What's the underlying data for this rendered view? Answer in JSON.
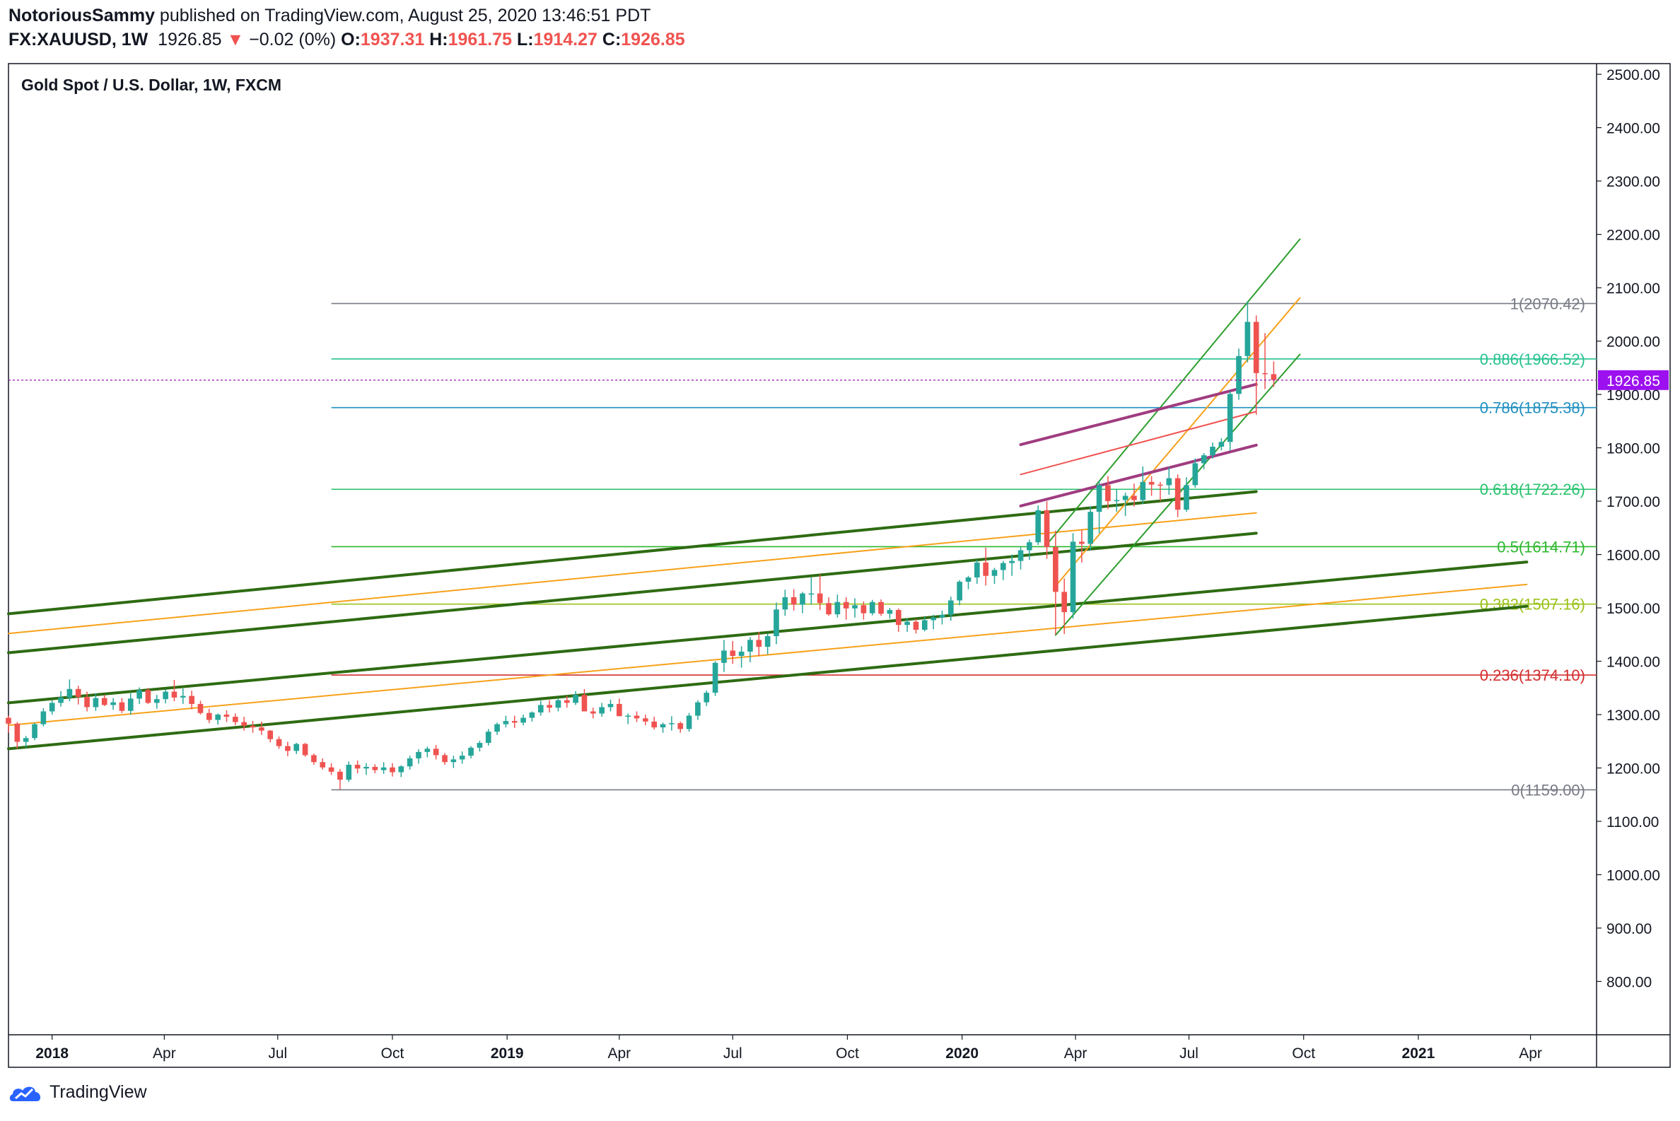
{
  "header": {
    "author": "NotoriousSammy",
    "published_text": " published on TradingView.com, August 25, 2020 13:46:51 PDT",
    "symbol": "FX:XAUUSD, 1W",
    "last": "1926.85",
    "change": "−0.02 (0%)",
    "o_label": "O:",
    "o_value": "1937.31",
    "h_label": "H:",
    "h_value": "1961.75",
    "l_label": "L:",
    "l_value": "1914.27",
    "c_label": "C:",
    "c_value": "1926.85"
  },
  "footer": {
    "brand": "TradingView"
  },
  "colors": {
    "up": "#26a69a",
    "down": "#ef5350",
    "dark_green": "#2e6b12",
    "orange": "#f7a11a",
    "magenta": "#a03c80",
    "green": "#2d9e2d",
    "purple": "#9c27b0",
    "price_tag": "#9c10f0",
    "fib_1": "#787b86",
    "fib_0886": "#26c290",
    "fib_0786": "#1f8fbf",
    "fib_0618": "#26c26b",
    "fib_05": "#2db82d",
    "fib_0382": "#9bc21b",
    "fib_0236": "#d32f2f",
    "fib_0": "#787b86"
  },
  "chart_data": {
    "type": "candlestick",
    "title": "Gold Spot / U.S. Dollar, 1W, FXCM",
    "y_axis": {
      "range": [
        700,
        2520
      ],
      "ticks": [
        "2500.00",
        "2400.00",
        "2300.00",
        "2200.00",
        "2100.00",
        "2000.00",
        "1900.00",
        "1800.00",
        "1700.00",
        "1600.00",
        "1500.00",
        "1400.00",
        "1300.00",
        "1200.00",
        "1100.00",
        "1000.00",
        "900.00",
        "800.00"
      ]
    },
    "x_axis": {
      "range": [
        "2017-11-27",
        "2021-05-24"
      ],
      "ticks": [
        {
          "label": "2018",
          "date": "2018-01-01",
          "bold": true
        },
        {
          "label": "Apr",
          "date": "2018-04-01"
        },
        {
          "label": "Jul",
          "date": "2018-07-01"
        },
        {
          "label": "Oct",
          "date": "2018-10-01"
        },
        {
          "label": "2019",
          "date": "2019-01-01",
          "bold": true
        },
        {
          "label": "Apr",
          "date": "2019-04-01"
        },
        {
          "label": "Jul",
          "date": "2019-07-01"
        },
        {
          "label": "Oct",
          "date": "2019-10-01"
        },
        {
          "label": "2020",
          "date": "2020-01-01",
          "bold": true
        },
        {
          "label": "Apr",
          "date": "2020-04-01"
        },
        {
          "label": "Jul",
          "date": "2020-07-01"
        },
        {
          "label": "Oct",
          "date": "2020-10-01"
        },
        {
          "label": "2021",
          "date": "2021-01-01",
          "bold": true
        },
        {
          "label": "Apr",
          "date": "2021-04-01"
        }
      ]
    },
    "last_price": {
      "value": 1926.85,
      "label": "1926.85"
    },
    "candles_start": "2017-11-27",
    "candles_ohlc": [
      [
        1294,
        1298,
        1266,
        1283
      ],
      [
        1283,
        1286,
        1236,
        1249
      ],
      [
        1249,
        1260,
        1238,
        1256
      ],
      [
        1256,
        1285,
        1252,
        1282
      ],
      [
        1282,
        1312,
        1278,
        1306
      ],
      [
        1306,
        1327,
        1300,
        1322
      ],
      [
        1322,
        1344,
        1315,
        1332
      ],
      [
        1332,
        1366,
        1325,
        1348
      ],
      [
        1348,
        1354,
        1319,
        1333
      ],
      [
        1333,
        1343,
        1306,
        1314
      ],
      [
        1314,
        1340,
        1307,
        1331
      ],
      [
        1331,
        1337,
        1316,
        1318
      ],
      [
        1318,
        1331,
        1309,
        1323
      ],
      [
        1323,
        1331,
        1303,
        1307
      ],
      [
        1307,
        1340,
        1300,
        1330
      ],
      [
        1330,
        1351,
        1320,
        1346
      ],
      [
        1346,
        1350,
        1320,
        1322
      ],
      [
        1322,
        1337,
        1311,
        1329
      ],
      [
        1329,
        1347,
        1321,
        1343
      ],
      [
        1343,
        1365,
        1325,
        1332
      ],
      [
        1332,
        1349,
        1320,
        1335
      ],
      [
        1335,
        1345,
        1310,
        1320
      ],
      [
        1320,
        1326,
        1300,
        1303
      ],
      [
        1303,
        1311,
        1284,
        1290
      ],
      [
        1290,
        1302,
        1281,
        1300
      ],
      [
        1300,
        1308,
        1286,
        1296
      ],
      [
        1296,
        1302,
        1280,
        1286
      ],
      [
        1286,
        1296,
        1270,
        1279
      ],
      [
        1279,
        1288,
        1266,
        1276
      ],
      [
        1276,
        1287,
        1262,
        1270
      ],
      [
        1270,
        1271,
        1248,
        1254
      ],
      [
        1254,
        1259,
        1236,
        1241
      ],
      [
        1241,
        1249,
        1222,
        1232
      ],
      [
        1232,
        1247,
        1226,
        1245
      ],
      [
        1245,
        1247,
        1221,
        1224
      ],
      [
        1224,
        1227,
        1206,
        1211
      ],
      [
        1211,
        1218,
        1197,
        1201
      ],
      [
        1201,
        1209,
        1187,
        1193
      ],
      [
        1193,
        1198,
        1160,
        1178
      ],
      [
        1178,
        1212,
        1174,
        1206
      ],
      [
        1206,
        1214,
        1190,
        1199
      ],
      [
        1199,
        1209,
        1187,
        1202
      ],
      [
        1202,
        1207,
        1190,
        1196
      ],
      [
        1196,
        1211,
        1189,
        1201
      ],
      [
        1201,
        1209,
        1184,
        1192
      ],
      [
        1192,
        1205,
        1183,
        1203
      ],
      [
        1203,
        1223,
        1197,
        1218
      ],
      [
        1218,
        1235,
        1208,
        1230
      ],
      [
        1230,
        1240,
        1220,
        1236
      ],
      [
        1236,
        1243,
        1216,
        1224
      ],
      [
        1224,
        1228,
        1206,
        1211
      ],
      [
        1211,
        1223,
        1200,
        1216
      ],
      [
        1216,
        1231,
        1208,
        1223
      ],
      [
        1223,
        1241,
        1218,
        1238
      ],
      [
        1238,
        1251,
        1231,
        1247
      ],
      [
        1247,
        1273,
        1242,
        1268
      ],
      [
        1268,
        1285,
        1262,
        1282
      ],
      [
        1282,
        1298,
        1276,
        1288
      ],
      [
        1288,
        1298,
        1275,
        1285
      ],
      [
        1285,
        1300,
        1280,
        1294
      ],
      [
        1294,
        1306,
        1287,
        1304
      ],
      [
        1304,
        1326,
        1298,
        1318
      ],
      [
        1318,
        1327,
        1304,
        1313
      ],
      [
        1313,
        1331,
        1306,
        1327
      ],
      [
        1327,
        1335,
        1313,
        1322
      ],
      [
        1322,
        1344,
        1318,
        1337
      ],
      [
        1337,
        1348,
        1320,
        1306
      ],
      [
        1306,
        1313,
        1293,
        1302
      ],
      [
        1302,
        1322,
        1296,
        1314
      ],
      [
        1314,
        1328,
        1306,
        1320
      ],
      [
        1320,
        1330,
        1303,
        1297
      ],
      [
        1297,
        1302,
        1282,
        1298
      ],
      [
        1298,
        1306,
        1286,
        1293
      ],
      [
        1293,
        1300,
        1280,
        1287
      ],
      [
        1287,
        1296,
        1272,
        1276
      ],
      [
        1276,
        1285,
        1266,
        1282
      ],
      [
        1282,
        1297,
        1270,
        1284
      ],
      [
        1284,
        1287,
        1266,
        1273
      ],
      [
        1273,
        1303,
        1268,
        1298
      ],
      [
        1298,
        1327,
        1290,
        1323
      ],
      [
        1323,
        1345,
        1316,
        1341
      ],
      [
        1341,
        1400,
        1335,
        1397
      ],
      [
        1397,
        1440,
        1380,
        1420
      ],
      [
        1420,
        1438,
        1395,
        1410
      ],
      [
        1410,
        1428,
        1388,
        1418
      ],
      [
        1418,
        1445,
        1398,
        1440
      ],
      [
        1440,
        1455,
        1410,
        1427
      ],
      [
        1427,
        1452,
        1413,
        1447
      ],
      [
        1447,
        1510,
        1432,
        1497
      ],
      [
        1497,
        1534,
        1485,
        1520
      ],
      [
        1520,
        1535,
        1495,
        1506
      ],
      [
        1506,
        1530,
        1490,
        1527
      ],
      [
        1527,
        1557,
        1506,
        1527
      ],
      [
        1527,
        1562,
        1496,
        1509
      ],
      [
        1509,
        1520,
        1485,
        1488
      ],
      [
        1488,
        1525,
        1482,
        1511
      ],
      [
        1511,
        1520,
        1478,
        1499
      ],
      [
        1499,
        1518,
        1482,
        1505
      ],
      [
        1505,
        1512,
        1478,
        1490
      ],
      [
        1490,
        1515,
        1486,
        1511
      ],
      [
        1511,
        1516,
        1485,
        1489
      ],
      [
        1489,
        1500,
        1480,
        1496
      ],
      [
        1496,
        1499,
        1455,
        1468
      ],
      [
        1468,
        1480,
        1455,
        1474
      ],
      [
        1474,
        1479,
        1452,
        1459
      ],
      [
        1459,
        1483,
        1456,
        1477
      ],
      [
        1477,
        1487,
        1460,
        1482
      ],
      [
        1482,
        1495,
        1469,
        1487
      ],
      [
        1487,
        1521,
        1476,
        1514
      ],
      [
        1514,
        1552,
        1505,
        1549
      ],
      [
        1549,
        1560,
        1535,
        1557
      ],
      [
        1557,
        1590,
        1545,
        1585
      ],
      [
        1585,
        1613,
        1542,
        1560
      ],
      [
        1560,
        1575,
        1545,
        1571
      ],
      [
        1571,
        1588,
        1552,
        1584
      ],
      [
        1584,
        1600,
        1560,
        1588
      ],
      [
        1588,
        1615,
        1572,
        1608
      ],
      [
        1608,
        1628,
        1590,
        1623
      ],
      [
        1623,
        1692,
        1618,
        1683
      ],
      [
        1683,
        1700,
        1592,
        1614
      ],
      [
        1614,
        1645,
        1450,
        1530
      ],
      [
        1530,
        1555,
        1451,
        1492
      ],
      [
        1492,
        1640,
        1480,
        1624
      ],
      [
        1624,
        1647,
        1585,
        1620
      ],
      [
        1620,
        1690,
        1608,
        1680
      ],
      [
        1680,
        1739,
        1640,
        1730
      ],
      [
        1730,
        1747,
        1685,
        1700
      ],
      [
        1700,
        1722,
        1680,
        1702
      ],
      [
        1702,
        1716,
        1672,
        1710
      ],
      [
        1710,
        1733,
        1690,
        1702
      ],
      [
        1702,
        1765,
        1695,
        1736
      ],
      [
        1736,
        1747,
        1710,
        1731
      ],
      [
        1731,
        1736,
        1700,
        1730
      ],
      [
        1730,
        1764,
        1712,
        1743
      ],
      [
        1743,
        1750,
        1670,
        1684
      ],
      [
        1684,
        1745,
        1680,
        1730
      ],
      [
        1730,
        1780,
        1725,
        1771
      ],
      [
        1771,
        1790,
        1760,
        1786
      ],
      [
        1786,
        1810,
        1780,
        1802
      ],
      [
        1802,
        1818,
        1795,
        1811
      ],
      [
        1811,
        1906,
        1795,
        1901
      ],
      [
        1901,
        1986,
        1890,
        1972
      ],
      [
        1972,
        2075,
        1960,
        2036
      ],
      [
        2036,
        2048,
        1862,
        1940
      ],
      [
        1940,
        2015,
        1910,
        1938
      ],
      [
        1938,
        1962,
        1914,
        1927
      ]
    ],
    "fib_levels": [
      {
        "ratio": "1",
        "price": 2070.42,
        "label": "1(2070.42)"
      },
      {
        "ratio": "0.886",
        "price": 1966.52,
        "label": "0.886(1966.52)"
      },
      {
        "ratio": "0.786",
        "price": 1875.38,
        "label": "0.786(1875.38)"
      },
      {
        "ratio": "0.618",
        "price": 1722.26,
        "label": "0.618(1722.26)"
      },
      {
        "ratio": "0.5",
        "price": 1614.71,
        "label": "0.5(1614.71)"
      },
      {
        "ratio": "0.382",
        "price": 1507.16,
        "label": "0.382(1507.16)"
      },
      {
        "ratio": "0.236",
        "price": 1374.1,
        "label": "0.236(1374.10)"
      },
      {
        "ratio": "0",
        "price": 1159.0,
        "label": "0(1159.00)"
      }
    ],
    "fib_start_date": "2018-08-13",
    "trendlines": [
      {
        "color": "dark_green",
        "width": 4,
        "points": [
          [
            "2017-11-27",
            1489
          ],
          [
            "2020-08-24",
            1718
          ]
        ]
      },
      {
        "color": "orange",
        "width": 2,
        "points": [
          [
            "2017-11-27",
            1452
          ],
          [
            "2020-08-24",
            1678
          ]
        ]
      },
      {
        "color": "dark_green",
        "width": 4,
        "points": [
          [
            "2017-11-27",
            1416
          ],
          [
            "2020-08-24",
            1640
          ]
        ]
      },
      {
        "color": "dark_green",
        "width": 4,
        "points": [
          [
            "2017-11-27",
            1322
          ],
          [
            "2021-03-29",
            1586
          ]
        ]
      },
      {
        "color": "orange",
        "width": 2,
        "points": [
          [
            "2017-11-27",
            1280
          ],
          [
            "2021-03-29",
            1544
          ]
        ]
      },
      {
        "color": "dark_green",
        "width": 4,
        "points": [
          [
            "2017-11-27",
            1236
          ],
          [
            "2021-03-29",
            1503
          ]
        ]
      },
      {
        "color": "green",
        "width": 2,
        "points": [
          [
            "2020-03-09",
            1619
          ],
          [
            "2020-09-28",
            2191
          ]
        ]
      },
      {
        "color": "green",
        "width": 2,
        "points": [
          [
            "2020-03-16",
            1449
          ],
          [
            "2020-09-28",
            1975
          ]
        ]
      },
      {
        "color": "orange",
        "width": 2,
        "points": [
          [
            "2020-03-16",
            1541
          ],
          [
            "2020-09-28",
            2081
          ]
        ]
      },
      {
        "color": "magenta",
        "width": 4,
        "points": [
          [
            "2020-02-17",
            1691
          ],
          [
            "2020-08-24",
            1919
          ]
        ]
      },
      {
        "color": "magenta",
        "width": 4,
        "points": [
          [
            "2020-02-17",
            1806
          ],
          [
            "2020-08-24",
            1805
          ]
        ]
      },
      {
        "color": "down",
        "width": 2,
        "points": [
          [
            "2020-02-17",
            1750
          ],
          [
            "2020-08-24",
            1868
          ]
        ]
      }
    ],
    "magenta_lines_note": "",
    "extra_magenta": [
      {
        "points": [
          [
            "2020-02-17",
            1806
          ],
          [
            "2020-08-24",
            1919
          ]
        ]
      },
      {
        "points": [
          [
            "2020-02-17",
            1691
          ],
          [
            "2020-08-24",
            1805
          ]
        ]
      }
    ]
  }
}
